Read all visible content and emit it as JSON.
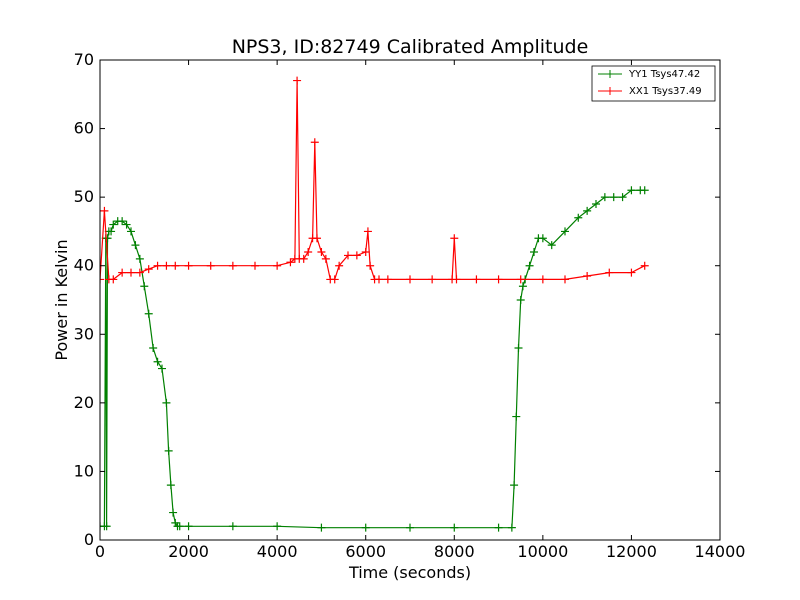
{
  "chart_data": {
    "type": "line",
    "title": "NPS3, ID:82749 Calibrated Amplitude",
    "xlabel": "Time (seconds)",
    "ylabel": "Power in Kelvin",
    "xlim": [
      0,
      14000
    ],
    "ylim": [
      0,
      70
    ],
    "xticks": [
      0,
      2000,
      4000,
      6000,
      8000,
      10000,
      12000,
      14000
    ],
    "yticks": [
      0,
      10,
      20,
      30,
      40,
      50,
      60,
      70
    ],
    "legend_position": "top-right",
    "marker": "+",
    "grid": false,
    "series": [
      {
        "name": "YY1 Tsys47.42",
        "color": "#008000",
        "x": [
          0,
          100,
          130,
          150,
          170,
          200,
          250,
          300,
          400,
          500,
          600,
          700,
          800,
          900,
          1000,
          1100,
          1200,
          1300,
          1400,
          1500,
          1550,
          1600,
          1650,
          1700,
          1750,
          1800,
          2000,
          3000,
          4000,
          5000,
          6000,
          7000,
          8000,
          9000,
          9300,
          9350,
          9400,
          9450,
          9500,
          9550,
          9600,
          9700,
          9800,
          9900,
          10000,
          10200,
          10500,
          10800,
          11000,
          11200,
          11400,
          11600,
          11800,
          12000,
          12200,
          12300
        ],
        "y": [
          2,
          2,
          44,
          2,
          44,
          45,
          45,
          46,
          46.5,
          46.5,
          46,
          45,
          43,
          41,
          37,
          33,
          28,
          26,
          25,
          20,
          13,
          8,
          4,
          2.5,
          2,
          2,
          2,
          2,
          2,
          1.8,
          1.8,
          1.8,
          1.8,
          1.8,
          1.8,
          8,
          18,
          28,
          35,
          37,
          38,
          40,
          42,
          44,
          44,
          43,
          45,
          47,
          48,
          49,
          50,
          50,
          50,
          51,
          51,
          51
        ]
      },
      {
        "name": "XX1 Tsys37.49",
        "color": "#ff0000",
        "x": [
          0,
          100,
          200,
          300,
          500,
          700,
          900,
          1100,
          1300,
          1500,
          1700,
          2000,
          2500,
          3000,
          3500,
          4000,
          4300,
          4400,
          4450,
          4500,
          4600,
          4700,
          4800,
          4850,
          4900,
          5000,
          5100,
          5200,
          5300,
          5400,
          5600,
          5800,
          6000,
          6050,
          6100,
          6200,
          6300,
          6500,
          7000,
          7500,
          7950,
          8000,
          8050,
          8500,
          9000,
          9500,
          10000,
          10500,
          11000,
          11500,
          12000,
          12300
        ],
        "y": [
          38,
          48,
          38,
          38,
          39,
          39,
          39,
          39.5,
          40,
          40,
          40,
          40,
          40,
          40,
          40,
          40,
          40.5,
          41,
          67,
          41,
          41,
          42,
          44,
          58,
          44,
          42,
          41,
          38,
          38,
          40,
          41.5,
          41.5,
          42,
          45,
          40,
          38,
          38,
          38,
          38,
          38,
          38,
          44,
          38,
          38,
          38,
          38,
          38,
          38,
          38.5,
          39,
          39,
          40
        ]
      }
    ]
  }
}
